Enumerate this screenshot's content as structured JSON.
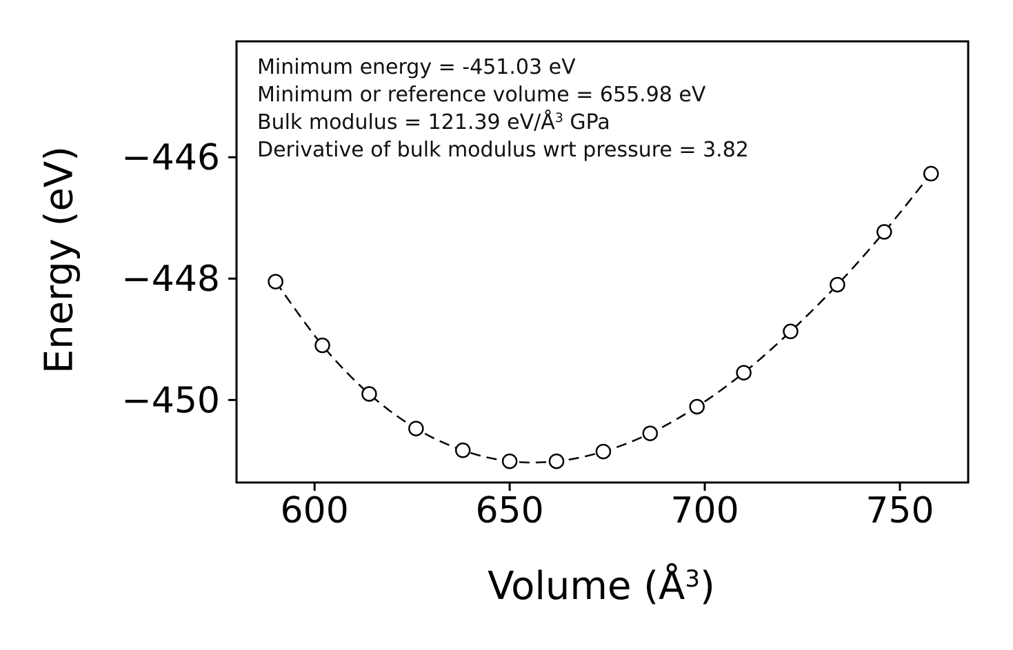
{
  "colors": {
    "background": "#ffffff",
    "axis": "#000000",
    "series": "#000000",
    "text": "#111111"
  },
  "chart_data": {
    "type": "scatter",
    "title": "",
    "xlabel": {
      "prefix": "Volume (Å",
      "sup": "3",
      "suffix": ")"
    },
    "ylabel": "Energy (eV)",
    "xlim": [
      580,
      767.5
    ],
    "ylim": [
      -451.36,
      -444.09
    ],
    "xticks": [
      600,
      650,
      700,
      750
    ],
    "yticks": [
      -446,
      -448,
      -450
    ],
    "grid": false,
    "legend": "none",
    "series": [
      {
        "name": "equation-of-state-fit",
        "marker": "open-circle",
        "line_style": "dashed",
        "color": "#000000",
        "x": [
          590,
          602,
          614,
          626,
          638,
          650,
          662,
          674,
          686,
          698,
          710,
          722,
          734,
          746,
          758
        ],
        "y": [
          -448.05,
          -449.1,
          -449.9,
          -450.47,
          -450.83,
          -451.01,
          -451.01,
          -450.85,
          -450.55,
          -450.11,
          -449.55,
          -448.87,
          -448.1,
          -447.23,
          -446.27
        ]
      }
    ],
    "annotations": {
      "line1": "Minimum energy = -451.03 eV",
      "line2": "Minimum or reference volume = 655.98 eV",
      "line3_prefix": "Bulk modulus = 121.39 eV/Å",
      "line3_sup": "3",
      "line3_suffix": " GPa",
      "line4": "Derivative of bulk modulus wrt pressure = 3.82"
    },
    "fit_parameters": {
      "minimum_energy_eV": -451.03,
      "minimum_or_reference_volume": 655.98,
      "bulk_modulus": 121.39,
      "bulk_modulus_pressure_derivative": 3.82
    }
  }
}
